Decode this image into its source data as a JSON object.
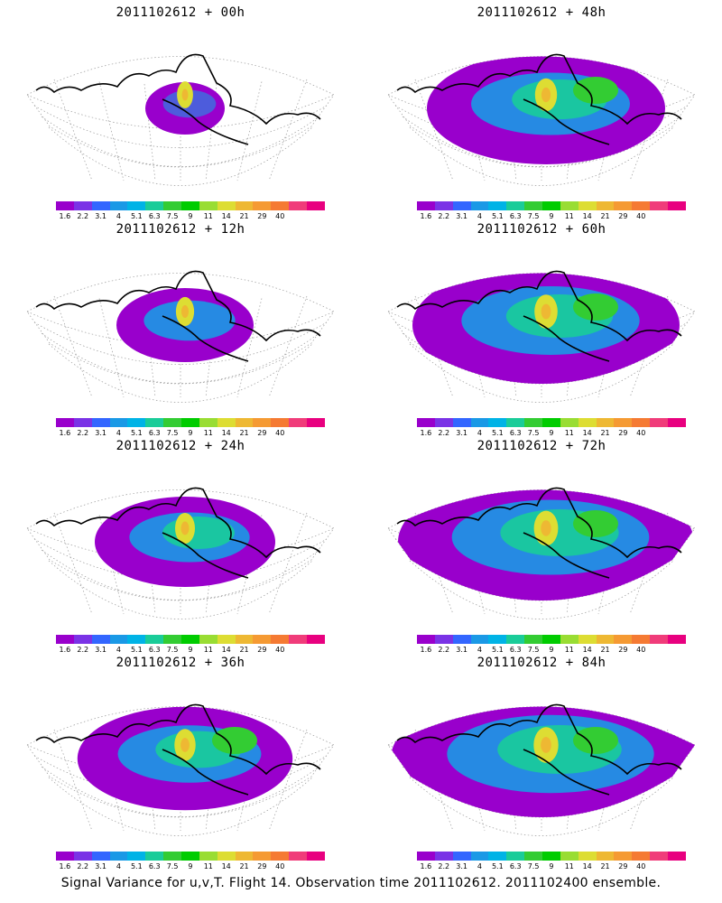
{
  "panels": [
    {
      "title": "2011102612 + 00h",
      "spread": 0.15
    },
    {
      "title": "2011102612 + 48h",
      "spread": 0.7
    },
    {
      "title": "2011102612 + 12h",
      "spread": 0.35
    },
    {
      "title": "2011102612 + 60h",
      "spread": 0.8
    },
    {
      "title": "2011102612 + 24h",
      "spread": 0.5
    },
    {
      "title": "2011102612 + 72h",
      "spread": 0.9
    },
    {
      "title": "2011102612 + 36h",
      "spread": 0.62
    },
    {
      "title": "2011102612 + 84h",
      "spread": 0.95
    }
  ],
  "colorbar": {
    "labels": [
      "1.6",
      "2.2",
      "3.1",
      "4",
      "5.1",
      "6.3",
      "7.5",
      "9",
      "11",
      "14",
      "21",
      "29",
      "40"
    ],
    "colors": [
      "#9900cc",
      "#7a33e6",
      "#3366ff",
      "#1a99e6",
      "#00b3e6",
      "#1acc99",
      "#33cc33",
      "#00cc00",
      "#99dd33",
      "#dddd33",
      "#eeb833",
      "#f59a33",
      "#f57a33",
      "#f03c7a",
      "#e8007f"
    ]
  },
  "footer": "Signal Variance for u,v,T. Flight 14. Observation time 2011102612. 2011102400 ensemble."
}
